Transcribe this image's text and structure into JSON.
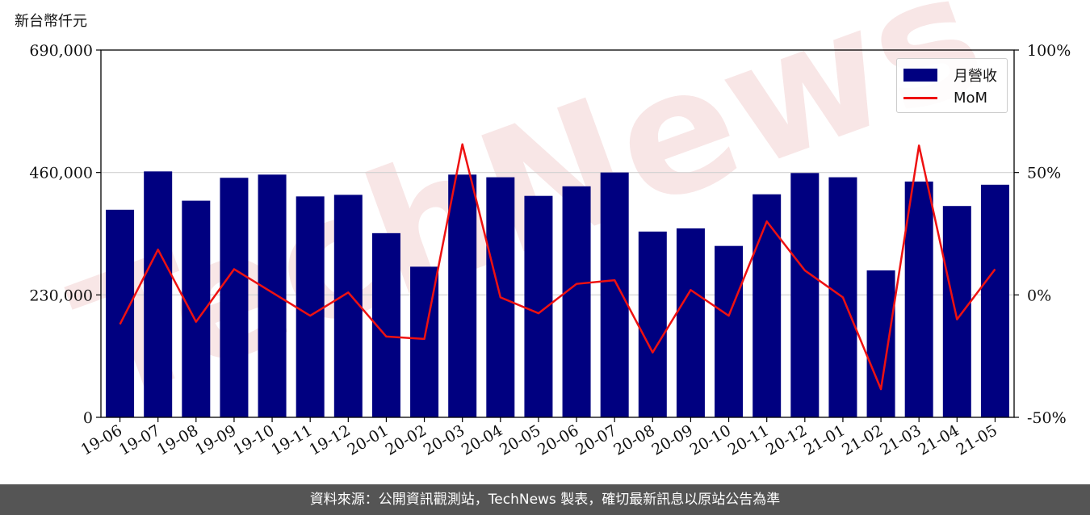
{
  "unit_label": "新台幣仟元",
  "footer_text": "資料來源：公開資訊觀測站，TechNews 製表，確切最新訊息以原站公告為準",
  "watermark_text": "TechNews",
  "colors": {
    "bar": "#000080",
    "line": "#ee1111",
    "footer_bg": "#555555",
    "watermark": "#f6dede"
  },
  "chart_data": {
    "type": "bar",
    "categories": [
      "19-06",
      "19-07",
      "19-08",
      "19-09",
      "19-10",
      "19-11",
      "19-12",
      "20-01",
      "20-02",
      "20-03",
      "20-04",
      "20-05",
      "20-06",
      "20-07",
      "20-08",
      "20-09",
      "20-10",
      "20-11",
      "20-12",
      "21-01",
      "21-02",
      "21-03",
      "21-04",
      "21-05"
    ],
    "series": [
      {
        "name": "月營收",
        "type": "bar",
        "axis": "left",
        "values": [
          390000,
          462000,
          407000,
          450000,
          456000,
          415000,
          418000,
          346000,
          283000,
          456000,
          451000,
          416000,
          434000,
          460000,
          349000,
          355000,
          322000,
          419000,
          459000,
          451000,
          276000,
          443000,
          397000,
          437000
        ]
      },
      {
        "name": "MoM",
        "type": "line",
        "axis": "right",
        "values": [
          -12,
          18.5,
          -11,
          10.5,
          1,
          -8.5,
          1,
          -17,
          -18,
          61.5,
          -1,
          -7.5,
          4.5,
          6,
          -23.5,
          2,
          -8.5,
          30,
          10,
          -1,
          -38.5,
          61,
          -10,
          10.5
        ]
      }
    ],
    "y_left": {
      "ylim": [
        0,
        690000
      ],
      "ticks": [
        "0",
        "230,000",
        "460,000",
        "690,000"
      ],
      "tick_values": [
        0,
        230000,
        460000,
        690000
      ]
    },
    "y_right": {
      "ylim": [
        -50,
        100
      ],
      "ticks": [
        "-50%",
        "0%",
        "50%",
        "100%"
      ],
      "tick_values": [
        -50,
        0,
        50,
        100
      ]
    },
    "grid": "horizontal",
    "legend_position": "top-right"
  }
}
